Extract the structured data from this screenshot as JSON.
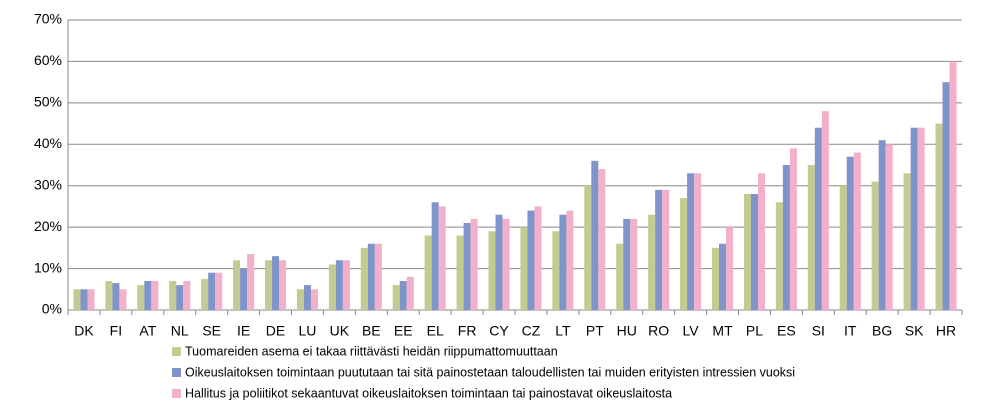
{
  "chart_data": {
    "type": "bar",
    "categories": [
      "DK",
      "FI",
      "AT",
      "NL",
      "SE",
      "IE",
      "DE",
      "LU",
      "UK",
      "BE",
      "EE",
      "EL",
      "FR",
      "CY",
      "CZ",
      "LT",
      "PT",
      "HU",
      "RO",
      "LV",
      "MT",
      "PL",
      "ES",
      "SI",
      "IT",
      "BG",
      "SK",
      "HR"
    ],
    "series": [
      {
        "name": "Tuomareiden asema ei takaa riittävästi heidän riippumattomuuttaan",
        "color": "#c4cb91",
        "values": [
          5,
          7,
          6,
          7,
          7.5,
          12,
          12,
          5,
          11,
          15,
          6,
          18,
          18,
          19,
          20,
          19,
          30,
          16,
          23,
          27,
          15,
          28,
          26,
          35,
          30,
          31,
          33,
          45
        ]
      },
      {
        "name": "Oikeuslaitoksen toimintaan puututaan tai sitä painostetaan taloudellisten tai muiden erityisten intressien vuoksi",
        "color": "#7f94c8",
        "values": [
          5,
          6.5,
          7,
          6,
          9,
          10,
          13,
          6,
          12,
          16,
          7,
          26,
          21,
          23,
          24,
          23,
          36,
          22,
          29,
          33,
          16,
          28,
          35,
          44,
          37,
          41,
          44,
          55
        ]
      },
      {
        "name": "Hallitus ja poliitikot sekaantuvat oikeuslaitoksen toimintaan tai painostavat oikeuslaitosta",
        "color": "#f2b0cb",
        "values": [
          5,
          5,
          7,
          7,
          9,
          13.5,
          12,
          5,
          12,
          16,
          8,
          25,
          22,
          22,
          25,
          24,
          34,
          22,
          29,
          33,
          20,
          33,
          39,
          48,
          38,
          40,
          44,
          60
        ]
      }
    ],
    "ylim": [
      0,
      70
    ],
    "yticks": [
      {
        "value": 0,
        "label": "0%"
      },
      {
        "value": 10,
        "label": "10%"
      },
      {
        "value": 20,
        "label": "20%"
      },
      {
        "value": 30,
        "label": "30%"
      },
      {
        "value": 40,
        "label": "40%"
      },
      {
        "value": 50,
        "label": "50%"
      },
      {
        "value": 60,
        "label": "60%"
      },
      {
        "value": 70,
        "label": "70%"
      }
    ],
    "grid": true
  }
}
